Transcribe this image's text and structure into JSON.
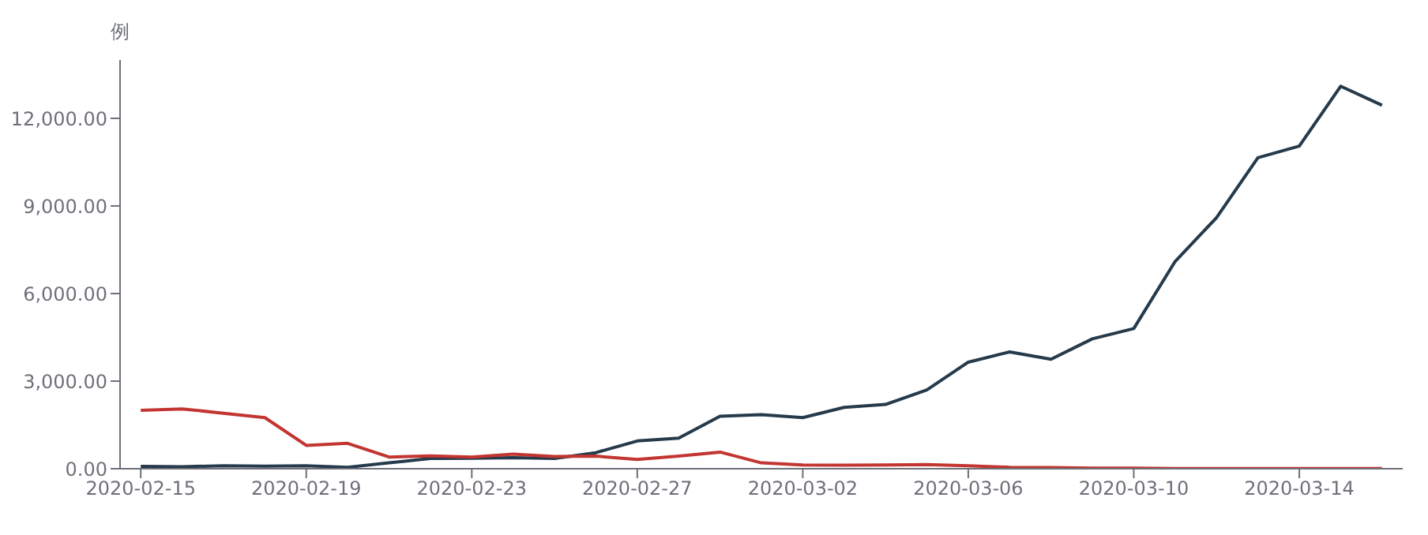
{
  "chart_data": {
    "type": "line",
    "ylabel": "例",
    "x": [
      "2020-02-15",
      "2020-02-16",
      "2020-02-17",
      "2020-02-18",
      "2020-02-19",
      "2020-02-20",
      "2020-02-21",
      "2020-02-22",
      "2020-02-23",
      "2020-02-24",
      "2020-02-25",
      "2020-02-26",
      "2020-02-27",
      "2020-02-28",
      "2020-02-29",
      "2020-03-01",
      "2020-03-02",
      "2020-03-03",
      "2020-03-04",
      "2020-03-05",
      "2020-03-06",
      "2020-03-07",
      "2020-03-08",
      "2020-03-09",
      "2020-03-10",
      "2020-03-11",
      "2020-03-12",
      "2020-03-13",
      "2020-03-14",
      "2020-03-15",
      "2020-03-16"
    ],
    "series": [
      {
        "color": "#253a4b",
        "values": [
          80,
          70,
          100,
          90,
          100,
          50,
          200,
          350,
          360,
          380,
          350,
          550,
          950,
          1050,
          1800,
          1850,
          1750,
          2100,
          2200,
          2700,
          3650,
          4000,
          3750,
          4450,
          4800,
          7100,
          8600,
          10650,
          11050,
          13100,
          12450
        ]
      },
      {
        "color": "#c23531",
        "values": [
          2000,
          2050,
          1900,
          1750,
          800,
          870,
          400,
          440,
          400,
          500,
          420,
          430,
          320,
          430,
          570,
          200,
          130,
          120,
          130,
          140,
          100,
          50,
          40,
          20,
          20,
          10,
          10,
          10,
          10,
          10,
          10
        ]
      }
    ],
    "xlim": [
      "2020-02-14T12:00",
      "2020-03-16T12:00"
    ],
    "xticks": [
      "2020-02-15",
      "2020-02-19",
      "2020-02-23",
      "2020-02-27",
      "2020-03-02",
      "2020-03-06",
      "2020-03-10",
      "2020-03-14"
    ],
    "ylim": [
      0,
      14000
    ],
    "yticks": [
      {
        "value": 0,
        "label": "0.00"
      },
      {
        "value": 3000,
        "label": "3,000.00"
      },
      {
        "value": 6000,
        "label": "6,000.00"
      },
      {
        "value": 9000,
        "label": "9,000.00"
      },
      {
        "value": 12000,
        "label": "12,000.00"
      }
    ],
    "grid": false,
    "legend": false,
    "marker": "none",
    "line_style": "solid"
  }
}
